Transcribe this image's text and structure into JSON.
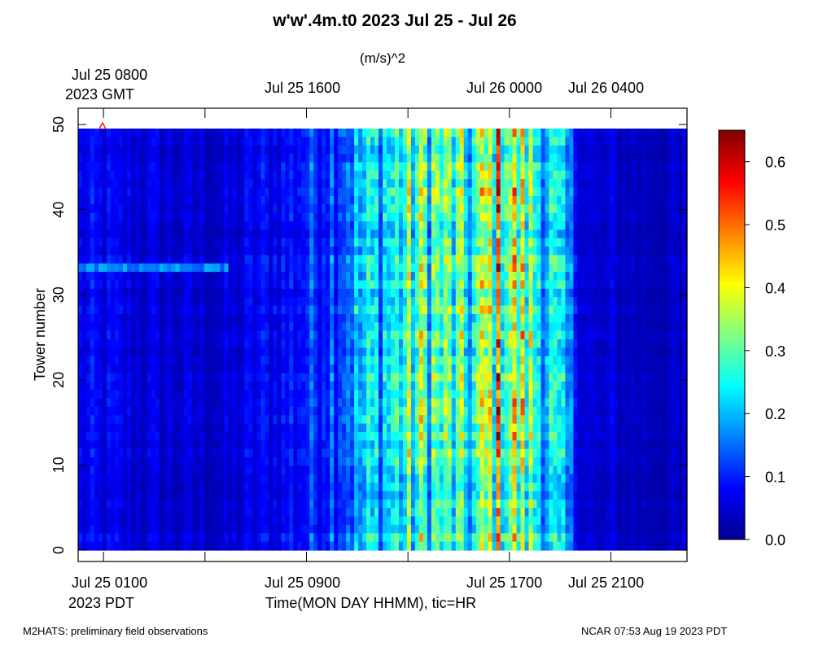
{
  "chart_data": {
    "type": "heatmap",
    "title": "w'w'.4m.t0 2023 Jul 25 - Jul 26",
    "units": "(m/s)^2",
    "ylabel": "Tower number",
    "xlabel": "Time(MON DAY HHMM), tic=HR",
    "ylim": [
      0,
      50
    ],
    "y_ticks": [
      "0",
      "10",
      "20",
      "30",
      "40",
      "50"
    ],
    "x_range_pdt": [
      "Jul 25 0000",
      "Jul 25 2400"
    ],
    "bottom_axis": {
      "tick_labels": [
        "Jul 25 0100",
        "Jul 25 0900",
        "Jul 25 1700",
        "Jul 25 2100"
      ],
      "timezone": "2023 PDT"
    },
    "top_axis": {
      "tick_labels": [
        "Jul 25 0800",
        "Jul 25 1600",
        "Jul 26 0000",
        "Jul 26 0400"
      ],
      "timezone": "2023 GMT"
    },
    "colorbar": {
      "colormap": "jet",
      "range": [
        0.0,
        0.65
      ],
      "tick_labels": [
        "0.0",
        "0.1",
        "0.2",
        "0.3",
        "0.4",
        "0.5",
        "0.6"
      ]
    },
    "profile_time_hours_pdt": [
      0,
      2,
      4,
      6,
      7,
      8,
      9,
      10,
      11,
      12,
      13,
      14,
      15,
      15.5,
      16,
      16.7,
      17.2,
      18,
      19,
      19.5,
      20,
      20.5,
      21,
      22,
      24
    ],
    "profile_mean_value": [
      0.07,
      0.06,
      0.05,
      0.05,
      0.07,
      0.08,
      0.1,
      0.14,
      0.18,
      0.22,
      0.26,
      0.28,
      0.25,
      0.22,
      0.3,
      0.38,
      0.33,
      0.28,
      0.18,
      0.12,
      0.06,
      0.04,
      0.05,
      0.04,
      0.04
    ]
  },
  "footer": {
    "left": "M2HATS: preliminary field observations",
    "right": "NCAR 07:53 Aug 19 2023 PDT"
  },
  "colors": {
    "marker": "#ff0000",
    "frame": "#000000"
  }
}
